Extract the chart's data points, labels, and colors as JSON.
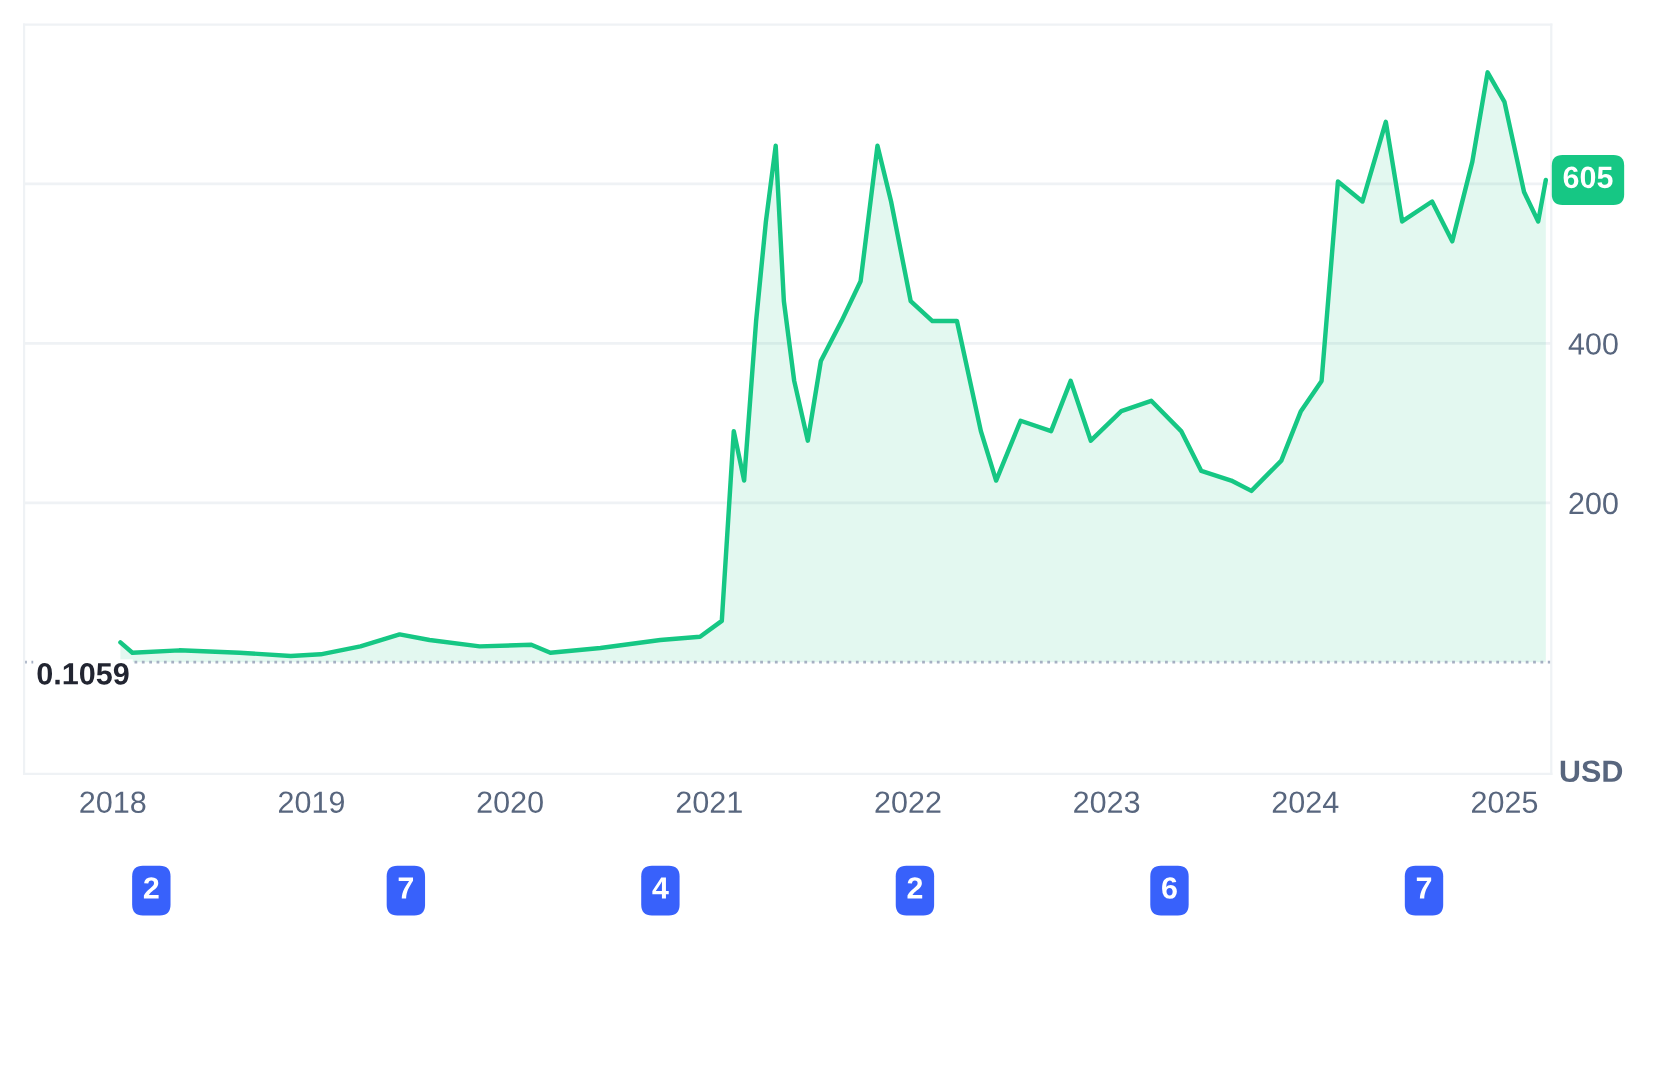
{
  "chart_data": {
    "type": "area",
    "ylabel": "USD",
    "color": "#16c784",
    "x": [
      "2018-01-15",
      "2018-02-06",
      "2018-05-03",
      "2018-08-22",
      "2018-11-24",
      "2019-01-18",
      "2019-04-01",
      "2019-06-12",
      "2019-08-06",
      "2019-11-06",
      "2020-02-09",
      "2020-03-15",
      "2020-06-15",
      "2020-10-03",
      "2020-12-15",
      "2021-01-24",
      "2021-02-15",
      "2021-03-06",
      "2021-03-28",
      "2021-04-15",
      "2021-05-03",
      "2021-05-18",
      "2021-06-06",
      "2021-07-01",
      "2021-07-25",
      "2021-09-01",
      "2021-10-06",
      "2021-11-06",
      "2021-12-01",
      "2022-01-06",
      "2022-02-15",
      "2022-04-01",
      "2022-05-15",
      "2022-06-12",
      "2022-07-27",
      "2022-09-21",
      "2022-10-27",
      "2022-12-03",
      "2023-01-28",
      "2023-03-24",
      "2023-05-18",
      "2023-06-24",
      "2023-08-18",
      "2023-09-24",
      "2023-11-18",
      "2023-12-24",
      "2024-01-31",
      "2024-03-01",
      "2024-04-15",
      "2024-05-28",
      "2024-06-27",
      "2024-08-21",
      "2024-09-27",
      "2024-11-03",
      "2024-12-01",
      "2025-01-01",
      "2025-02-06",
      "2025-03-04",
      "2025-03-18"
    ],
    "values": [
      25,
      12,
      15,
      12,
      8,
      10,
      20,
      35,
      28,
      20,
      22,
      12,
      18,
      28,
      32,
      52,
      290,
      228,
      428,
      553,
      648,
      453,
      353,
      278,
      378,
      428,
      478,
      648,
      578,
      453,
      428,
      428,
      290,
      228,
      303,
      290,
      353,
      278,
      315,
      328,
      290,
      240,
      228,
      215,
      253,
      315,
      353,
      603,
      578,
      678,
      553,
      578,
      528,
      628,
      740,
      703,
      590,
      553,
      605
    ],
    "xlim": [
      "2017-07-22",
      "2025-03-28"
    ],
    "xticks": [
      {
        "value": "2018",
        "label": "2018"
      },
      {
        "value": "2019",
        "label": "2019"
      },
      {
        "value": "2020",
        "label": "2020"
      },
      {
        "value": "2021",
        "label": "2021"
      },
      {
        "value": "2022",
        "label": "2022"
      },
      {
        "value": "2023",
        "label": "2023"
      },
      {
        "value": "2024",
        "label": "2024"
      },
      {
        "value": "2025",
        "label": "2025"
      }
    ],
    "ylim": [
      -140,
      800
    ],
    "yticks": [
      200,
      400,
      {
        "value": 600,
        "label": null
      }
    ],
    "grid": "y",
    "ref_lines": [
      {
        "axis": "y",
        "value": 0.1059,
        "label": "0.1059",
        "line_style": "dotted",
        "color": "#a6b0c3"
      }
    ],
    "annotations": [
      {
        "text": "605",
        "x": "2025-03-18",
        "y": 605
      },
      "2",
      "7",
      "4",
      "2",
      "6",
      "7"
    ]
  }
}
